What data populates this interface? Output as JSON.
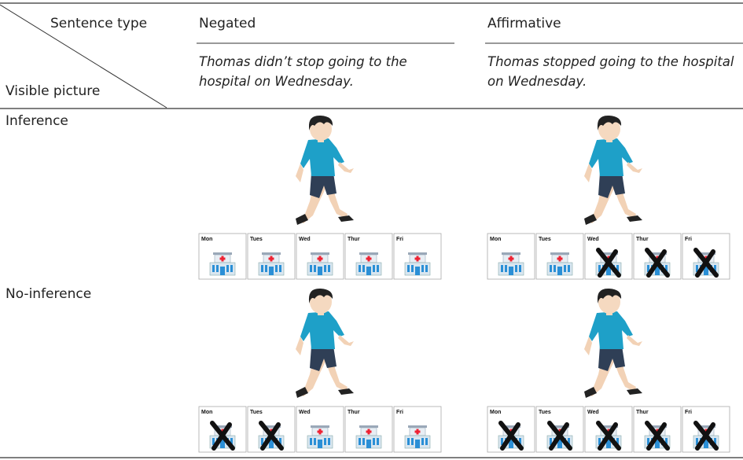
{
  "header": {
    "corner_top": "Sentence type",
    "corner_bottom": "Visible picture"
  },
  "columns": [
    {
      "label": "Negated",
      "sentence": "Thomas didn’t stop going to the hospital on Wednesday."
    },
    {
      "label": "Affirmative",
      "sentence": "Thomas stopped going to the hospital on Wednesday."
    }
  ],
  "rows": [
    {
      "label": "Inference"
    },
    {
      "label": "No-inference"
    }
  ],
  "days": [
    "Mon",
    "Tues",
    "Wed",
    "Thur",
    "Fri"
  ]
}
